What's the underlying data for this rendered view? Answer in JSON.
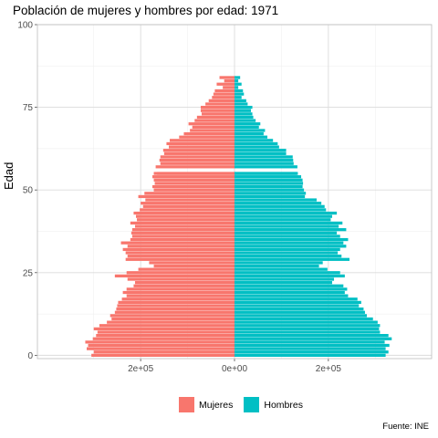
{
  "chart_data": {
    "type": "bar",
    "orientation": "horizontal",
    "layout": "population-pyramid",
    "title": "Población de mujeres y hombres por edad: 1971",
    "ylabel": "Edad",
    "xlabel": "",
    "caption": "Fuente: INE",
    "legend_position": "bottom",
    "grid": true,
    "xlim": [
      -420000,
      420000
    ],
    "ylim": [
      -1,
      100
    ],
    "x_ticks": [
      {
        "value": -200000,
        "label": "2e+05"
      },
      {
        "value": 0,
        "label": "0e+00"
      },
      {
        "value": 200000,
        "label": "2e+05"
      }
    ],
    "y_ticks": [
      {
        "value": 0,
        "label": "0"
      },
      {
        "value": 25,
        "label": "25"
      },
      {
        "value": 50,
        "label": "50"
      },
      {
        "value": 75,
        "label": "75"
      },
      {
        "value": 100,
        "label": "100"
      }
    ],
    "ages": [
      0,
      1,
      2,
      3,
      4,
      5,
      6,
      7,
      8,
      9,
      10,
      11,
      12,
      13,
      14,
      15,
      16,
      17,
      18,
      19,
      20,
      21,
      22,
      23,
      24,
      25,
      26,
      27,
      28,
      29,
      30,
      31,
      32,
      33,
      34,
      35,
      36,
      37,
      38,
      39,
      40,
      41,
      42,
      43,
      44,
      45,
      46,
      47,
      48,
      49,
      50,
      51,
      52,
      53,
      54,
      55,
      55,
      57,
      58,
      59,
      60,
      61,
      62,
      63,
      64,
      65,
      66,
      67,
      68,
      69,
      70,
      71,
      72,
      73,
      74,
      75,
      76,
      77,
      78,
      79,
      80,
      81,
      82,
      83,
      84
    ],
    "series": [
      {
        "name": "Mujeres",
        "color": "#f8766d",
        "values": [
          305000,
          300000,
          315000,
          312000,
          318000,
          302000,
          295000,
          292000,
          300000,
          288000,
          272000,
          262000,
          265000,
          255000,
          252000,
          250000,
          248000,
          240000,
          230000,
          238000,
          230000,
          215000,
          212000,
          228000,
          255000,
          230000,
          205000,
          172000,
          182000,
          232000,
          228000,
          232000,
          238000,
          228000,
          242000,
          222000,
          218000,
          220000,
          218000,
          212000,
          222000,
          208000,
          210000,
          215000,
          202000,
          195000,
          200000,
          190000,
          205000,
          192000,
          172000,
          175000,
          170000,
          172000,
          175000,
          165000,
          172000,
          168000,
          158000,
          160000,
          158000,
          150000,
          152000,
          140000,
          145000,
          138000,
          118000,
          108000,
          95000,
          90000,
          98000,
          85000,
          80000,
          70000,
          72000,
          72000,
          62000,
          55000,
          48000,
          45000,
          42000,
          25000,
          38000,
          22000,
          32000
        ]
      },
      {
        "name": "Hombres",
        "color": "#00bfc4",
        "values": [
          322000,
          328000,
          322000,
          330000,
          320000,
          335000,
          328000,
          310000,
          308000,
          310000,
          305000,
          295000,
          282000,
          278000,
          275000,
          265000,
          270000,
          262000,
          242000,
          235000,
          240000,
          232000,
          208000,
          212000,
          235000,
          225000,
          198000,
          180000,
          188000,
          245000,
          228000,
          220000,
          225000,
          238000,
          232000,
          242000,
          225000,
          218000,
          238000,
          222000,
          230000,
          205000,
          208000,
          218000,
          195000,
          192000,
          185000,
          175000,
          150000,
          152000,
          148000,
          145000,
          146000,
          145000,
          142000,
          132000,
          135000,
          134000,
          126000,
          125000,
          124000,
          110000,
          110000,
          95000,
          92000,
          82000,
          70000,
          62000,
          65000,
          52000,
          55000,
          45000,
          40000,
          38000,
          35000,
          38000,
          28000,
          25000,
          15000,
          20000,
          18000,
          8000,
          15000,
          8000,
          12000
        ]
      }
    ]
  }
}
